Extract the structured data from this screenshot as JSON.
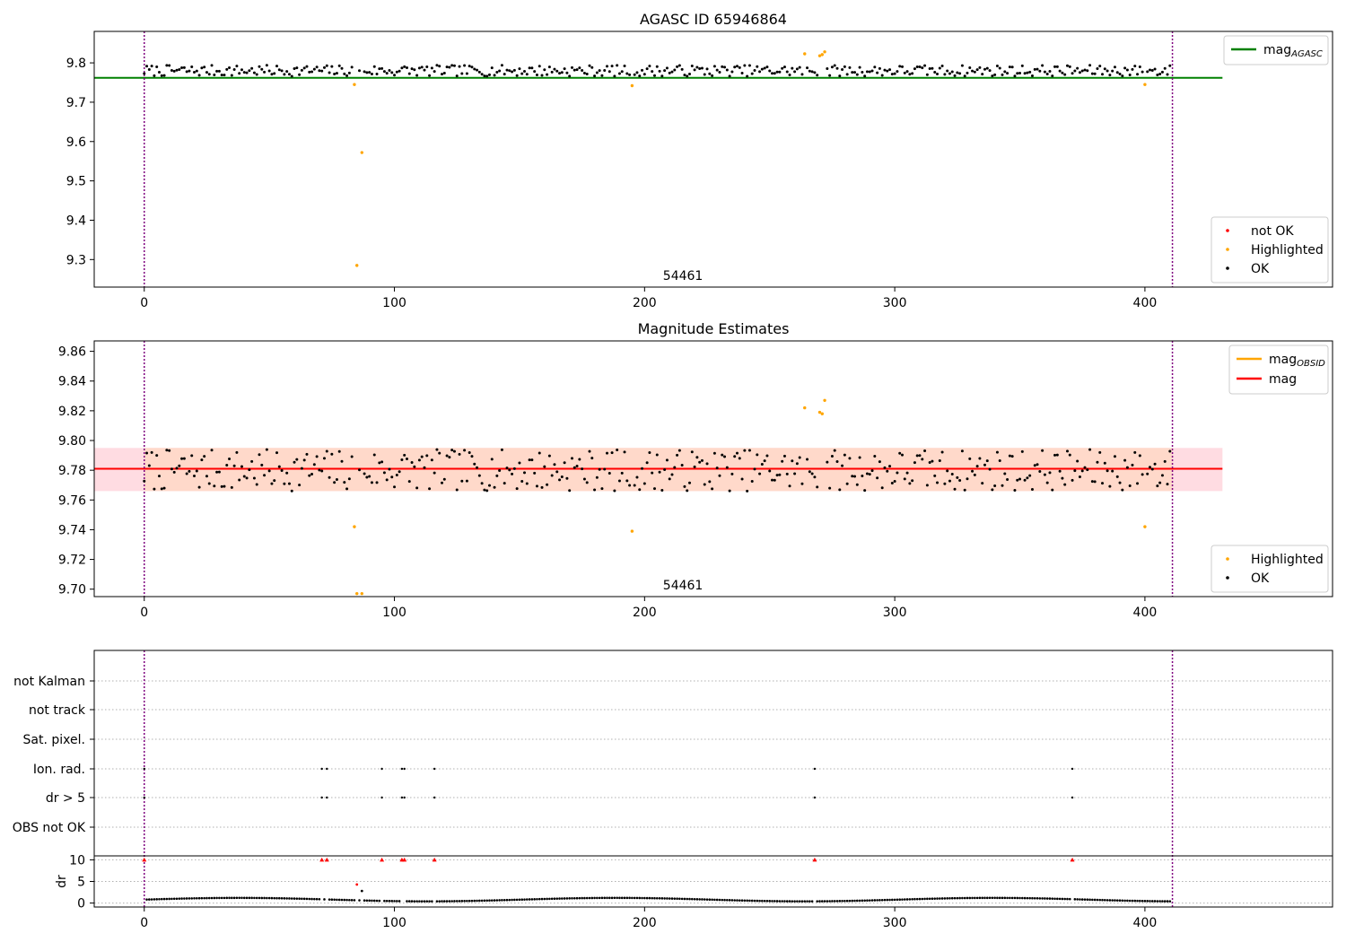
{
  "chart_data": [
    {
      "type": "scatter",
      "title": "AGASC ID 65946864",
      "xlim": [
        -20,
        475
      ],
      "ylim": [
        9.23,
        9.88
      ],
      "xticks": [
        0,
        100,
        200,
        300,
        400
      ],
      "yticks": [
        9.3,
        9.4,
        9.5,
        9.6,
        9.7,
        9.8
      ],
      "vlines": [
        0,
        411
      ],
      "hline": {
        "name": "mag",
        "name_sub": "AGASC",
        "value": 9.762,
        "x_end": 431
      },
      "annotation": {
        "text": "54461",
        "x": 206
      },
      "legend_lines": [
        {
          "name": "mag",
          "sub": "AGASC",
          "color": "#008000"
        }
      ],
      "legend_points": [
        {
          "name": "not OK",
          "color": "#ff0000"
        },
        {
          "name": "Highlighted",
          "color": "#ffa500"
        },
        {
          "name": "OK",
          "color": "#000000"
        }
      ],
      "highlighted": [
        [
          84,
          9.745
        ],
        [
          85,
          9.285
        ],
        [
          87,
          9.572
        ],
        [
          195,
          9.742
        ],
        [
          264,
          9.823
        ],
        [
          270,
          9.818
        ],
        [
          271,
          9.821
        ],
        [
          272,
          9.828
        ],
        [
          400,
          9.745
        ]
      ],
      "ok_model": {
        "n": 411,
        "base": 9.78,
        "noise": 0.014,
        "seed": 7
      }
    },
    {
      "type": "scatter",
      "title": "Magnitude Estimates",
      "xlim": [
        -20,
        475
      ],
      "ylim": [
        9.695,
        9.867
      ],
      "xticks": [
        0,
        100,
        200,
        300,
        400
      ],
      "yticks": [
        9.7,
        9.72,
        9.74,
        9.76,
        9.78,
        9.8,
        9.82,
        9.84,
        9.86
      ],
      "vlines": [
        0,
        411
      ],
      "band_outer": {
        "x_start": -20,
        "x_end": 431,
        "y_low": 9.766,
        "y_high": 9.795,
        "color": "#ffc0cb"
      },
      "band_inner": {
        "x_start": 0,
        "x_end": 411,
        "y_low": 9.766,
        "y_high": 9.795,
        "color": "#ffd8c8"
      },
      "mag_line": {
        "name": "mag",
        "value": 9.781,
        "x_end": 431,
        "color": "#ff0000"
      },
      "mag_obsid": {
        "name": "mag",
        "sub": "OBSID",
        "color": "#ffa500"
      },
      "annotation": {
        "text": "54461",
        "x": 206
      },
      "legend_lines": [
        {
          "name": "mag",
          "sub": "OBSID",
          "color": "#ffa500"
        },
        {
          "name": "mag",
          "sub": "",
          "color": "#ff0000"
        }
      ],
      "legend_points": [
        {
          "name": "Highlighted",
          "color": "#ffa500"
        },
        {
          "name": "OK",
          "color": "#000000"
        }
      ],
      "highlighted": [
        [
          84,
          9.742
        ],
        [
          85,
          9.697
        ],
        [
          87,
          9.697
        ],
        [
          195,
          9.739
        ],
        [
          264,
          9.822
        ],
        [
          270,
          9.819
        ],
        [
          271,
          9.818
        ],
        [
          272,
          9.827
        ],
        [
          400,
          9.742
        ]
      ],
      "ok_model": {
        "n": 411,
        "base": 9.78,
        "noise": 0.014,
        "seed": 7
      }
    },
    {
      "type": "scatter",
      "title": "",
      "xlim": [
        -20,
        475
      ],
      "xticks": [
        0,
        100,
        200,
        300,
        400
      ],
      "vlines": [
        0,
        411
      ],
      "flag_rows": [
        "not Kalman",
        "not track",
        "Sat. pixel.",
        "Ion. rad.",
        "dr > 5",
        "OBS not OK"
      ],
      "flag_points": {
        "Ion. rad.": [
          0,
          71,
          73,
          95,
          103,
          104,
          116,
          268,
          371
        ],
        "dr > 5": [
          0,
          71,
          73,
          95,
          103,
          104,
          116,
          268,
          371
        ]
      },
      "dr_ylabel": "dr",
      "dr_yticks": [
        0,
        5,
        10
      ],
      "dr_ylim": [
        -0.5,
        10.5
      ],
      "dr_clipped": [
        0,
        71,
        73,
        95,
        103,
        104,
        116,
        268,
        371
      ],
      "dr_outliers": [
        [
          85,
          4.3
        ],
        [
          87,
          2.8
        ]
      ],
      "dr_model": {
        "n": 411,
        "base": 0.8,
        "amp": 0.5
      }
    }
  ]
}
